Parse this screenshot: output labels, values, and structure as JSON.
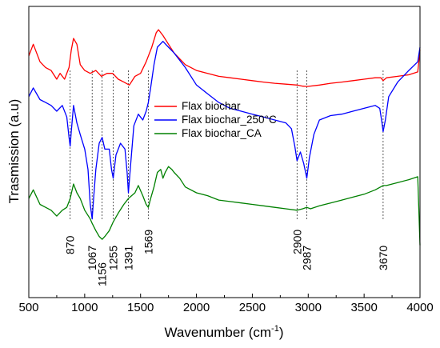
{
  "chart_data": {
    "type": "line",
    "title": "",
    "xlabel": "Wavenumber (cm",
    "xlabel_sup": "-1",
    "xlabel_suffix": ")",
    "ylabel": "Trasmission (a.u)",
    "xlim": [
      500,
      4000
    ],
    "ylim": [
      0,
      100
    ],
    "x_ticks": [
      500,
      1000,
      1500,
      2000,
      2500,
      3000,
      3500,
      4000
    ],
    "y_tick_labels": false,
    "grid": false,
    "legend_position": "center",
    "series": [
      {
        "name": "Flax biochar",
        "color": "#ff0000",
        "x": [
          500,
          540,
          600,
          650,
          700,
          750,
          780,
          820,
          860,
          880,
          900,
          930,
          960,
          1000,
          1050,
          1100,
          1150,
          1200,
          1250,
          1300,
          1350,
          1400,
          1450,
          1500,
          1550,
          1600,
          1640,
          1660,
          1700,
          1750,
          1800,
          1900,
          2000,
          2100,
          2200,
          2300,
          2400,
          2500,
          2600,
          2700,
          2800,
          2900,
          2950,
          2990,
          3100,
          3200,
          3300,
          3400,
          3500,
          3600,
          3650,
          3670,
          3700,
          3800,
          3900,
          3980,
          4000
        ],
        "y": [
          83,
          87,
          81,
          79,
          78,
          75,
          77,
          75,
          79,
          85,
          89,
          87,
          80,
          78,
          77,
          78,
          76,
          77,
          77,
          75,
          74,
          73,
          76,
          77,
          81,
          86,
          91,
          92,
          90,
          87,
          84,
          80,
          78,
          77,
          76,
          75.5,
          75,
          74.5,
          74,
          73.6,
          73.3,
          73,
          72.6,
          72.5,
          73,
          73.6,
          74,
          74.5,
          75,
          75.5,
          75.5,
          74.5,
          75.5,
          76,
          76.5,
          77.5,
          85
        ]
      },
      {
        "name": "Flax biochar_250°C",
        "color": "#0000ff",
        "x": [
          500,
          540,
          600,
          650,
          700,
          750,
          800,
          840,
          860,
          870,
          880,
          900,
          930,
          960,
          1000,
          1030,
          1050,
          1067,
          1080,
          1100,
          1130,
          1156,
          1180,
          1220,
          1240,
          1255,
          1280,
          1320,
          1360,
          1380,
          1391,
          1410,
          1440,
          1480,
          1520,
          1550,
          1569,
          1590,
          1620,
          1650,
          1700,
          1750,
          1800,
          1900,
          2000,
          2100,
          2200,
          2300,
          2400,
          2500,
          2600,
          2700,
          2800,
          2850,
          2880,
          2900,
          2930,
          2960,
          2987,
          3010,
          3050,
          3100,
          3200,
          3300,
          3400,
          3500,
          3600,
          3640,
          3660,
          3670,
          3690,
          3720,
          3800,
          3900,
          3980,
          4000
        ],
        "y": [
          69,
          72,
          68,
          67,
          66,
          64,
          66,
          62,
          55,
          52,
          57,
          66,
          60,
          56,
          51,
          44,
          32,
          27,
          34,
          44,
          53,
          55,
          51,
          51,
          44,
          41,
          49,
          53,
          51,
          43,
          36,
          45,
          59,
          63,
          61,
          64,
          67,
          72,
          80,
          86,
          88,
          86,
          84,
          79,
          73,
          70,
          67,
          65,
          64,
          63,
          62,
          61,
          60,
          58,
          52,
          47,
          50,
          46,
          41,
          48,
          56,
          61,
          62.5,
          63,
          64,
          65,
          66,
          65,
          60,
          57,
          61,
          69,
          74,
          78,
          81,
          86
        ]
      },
      {
        "name": "Flax biochar_CA",
        "color": "#008000",
        "x": [
          500,
          540,
          600,
          650,
          700,
          750,
          800,
          840,
          870,
          900,
          930,
          960,
          1000,
          1050,
          1067,
          1100,
          1130,
          1156,
          1180,
          1220,
          1255,
          1300,
          1350,
          1391,
          1420,
          1450,
          1480,
          1520,
          1550,
          1569,
          1590,
          1620,
          1650,
          1680,
          1700,
          1720,
          1750,
          1780,
          1800,
          1850,
          1900,
          2000,
          2100,
          2200,
          2300,
          2400,
          2500,
          2600,
          2700,
          2800,
          2900,
          2950,
          2987,
          3020,
          3100,
          3200,
          3300,
          3400,
          3500,
          3600,
          3670,
          3700,
          3800,
          3900,
          3980,
          4000
        ],
        "y": [
          34,
          37,
          32,
          31,
          30,
          28,
          30,
          31,
          34,
          39,
          36,
          34,
          30,
          27,
          25.5,
          23,
          21,
          20,
          21,
          23,
          26,
          29,
          32,
          34,
          35,
          36,
          38.5,
          35,
          32,
          31,
          34,
          38,
          43,
          44,
          41,
          43,
          45,
          44,
          43,
          41,
          38,
          36,
          35,
          33.5,
          33,
          32.5,
          32,
          31.5,
          31,
          30.5,
          30,
          30.5,
          31,
          30.5,
          31.5,
          32.5,
          33.5,
          34.5,
          35.5,
          37,
          38.5,
          38.5,
          39.5,
          40.5,
          41.5,
          18
        ]
      }
    ],
    "peaks": [
      {
        "x": 870,
        "label": "870"
      },
      {
        "x": 1067,
        "label": "1067"
      },
      {
        "x": 1156,
        "label": "1156"
      },
      {
        "x": 1255,
        "label": "1255"
      },
      {
        "x": 1391,
        "label": "1391"
      },
      {
        "x": 1569,
        "label": "1569"
      },
      {
        "x": 2900,
        "label": "2900"
      },
      {
        "x": 2987,
        "label": "2987"
      },
      {
        "x": 3670,
        "label": "3670"
      }
    ]
  }
}
